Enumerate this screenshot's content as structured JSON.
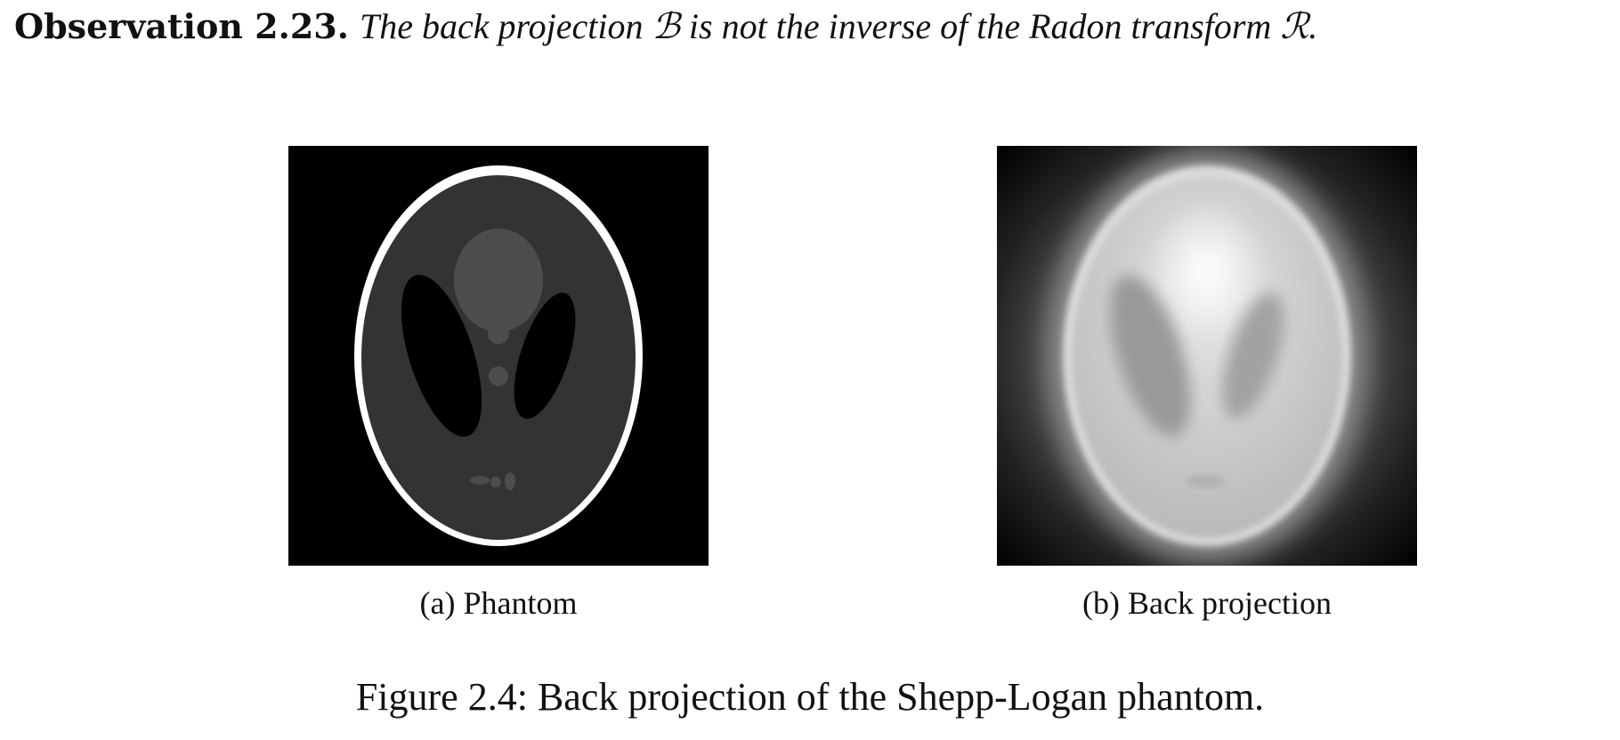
{
  "observation": {
    "label": "Observation 2.23.",
    "text_part1": "The back projection ",
    "symbol_b": "ℬ",
    "text_part2": " is not the inverse of the Radon transform ",
    "symbol_r": "ℛ",
    "text_part3": "."
  },
  "figure": {
    "subfigures": [
      {
        "label": "(a) Phantom"
      },
      {
        "label": "(b) Back projection"
      }
    ],
    "caption": "Figure 2.4: Back projection of the Shepp-Logan phantom."
  },
  "colors": {
    "background": "#ffffff",
    "text": "#111111",
    "panel_background": "#000000"
  }
}
